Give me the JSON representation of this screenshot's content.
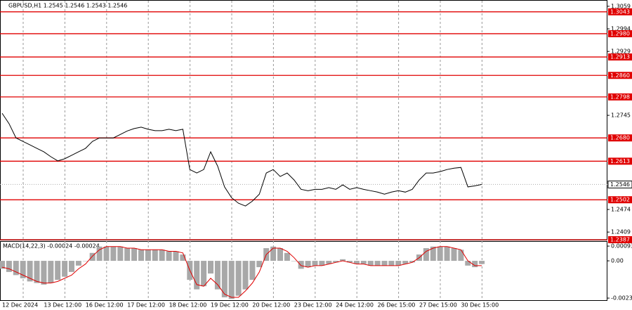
{
  "chart_data": [
    {
      "type": "line",
      "title": "GBPUSD,H1  1.2545 1.2546 1.2543 1.2546",
      "color": "#000000",
      "level_color": "#e00000",
      "categories": [
        "12 Dec 2024",
        null,
        null,
        null,
        null,
        null,
        "13 Dec 12:00",
        null,
        null,
        null,
        null,
        null,
        "16 Dec 12:00",
        null,
        null,
        null,
        null,
        null,
        "17 Dec 12:00",
        null,
        null,
        null,
        null,
        null,
        "18 Dec 12:00",
        null,
        null,
        null,
        null,
        null,
        "19 Dec 12:00",
        null,
        null,
        null,
        null,
        null,
        "20 Dec 12:00",
        null,
        null,
        null,
        null,
        null,
        "23 Dec 12:00",
        null,
        null,
        null,
        null,
        null,
        "24 Dec 12:00",
        null,
        null,
        null,
        null,
        null,
        "26 Dec 15:00",
        null,
        null,
        null,
        null,
        null,
        "27 Dec 15:00",
        null,
        null,
        null,
        null,
        null,
        "30 Dec 15:00",
        null,
        null,
        null
      ],
      "values": [
        1.2751,
        1.2721,
        1.268,
        1.267,
        1.266,
        1.265,
        1.264,
        1.2626,
        1.2614,
        1.262,
        1.263,
        1.264,
        1.265,
        1.267,
        1.268,
        1.268,
        1.268,
        1.269,
        1.27,
        1.2707,
        1.2711,
        1.2705,
        1.2701,
        1.2701,
        1.2705,
        1.2701,
        1.2705,
        1.2589,
        1.2579,
        1.2589,
        1.264,
        1.2599,
        1.2539,
        1.2508,
        1.2492,
        1.2484,
        1.2498,
        1.2518,
        1.2579,
        1.2589,
        1.2569,
        1.2579,
        1.2559,
        1.2532,
        1.2528,
        1.2532,
        1.2532,
        1.2537,
        1.2532,
        1.2545,
        1.2532,
        1.2537,
        1.2532,
        1.2528,
        1.2524,
        1.2518,
        1.2524,
        1.2528,
        1.2524,
        1.2532,
        1.2559,
        1.2579,
        1.2579,
        1.2583,
        1.2589,
        1.2593,
        1.2595,
        1.2539,
        1.2542,
        1.2546
      ],
      "ylim": [
        1.2387,
        1.3075
      ],
      "yticks": [
        1.3059,
        1.2994,
        1.2929,
        1.2745,
        1.2474,
        1.2409
      ],
      "levels": [
        1.3043,
        {
          "value": 1.298,
          "label": "1.2980"
        },
        1.2913,
        {
          "value": 1.286,
          "label": "1.2860"
        },
        1.2798,
        {
          "value": 1.268,
          "label": "1.2680"
        },
        1.2613,
        1.2502,
        1.2387
      ],
      "last": 1.2546,
      "grid": true
    },
    {
      "type": "macd",
      "title": "MACD(14,22,3) -0.00024 -0.00024",
      "series": [
        {
          "color": "#a8a8a8",
          "values": [
            -0.0005,
            -0.0007,
            -0.0009,
            -0.0011,
            -0.0013,
            -0.0014,
            -0.0015,
            -0.0014,
            -0.0012,
            -0.001,
            -0.0007,
            -0.0003,
            0,
            0.0005,
            0.0009,
            0.0009,
            0.0009,
            0.0009,
            0.0008,
            0.0008,
            0.0007,
            0.0007,
            0.0007,
            0.0007,
            0.0006,
            0.0006,
            0.0004,
            -0.0012,
            -0.0018,
            -0.0016,
            -0.0008,
            -0.0018,
            -0.0023,
            -0.0024,
            -0.0022,
            -0.0018,
            -0.0012,
            -0.0004,
            0.0008,
            0.0009,
            0.0008,
            0.0005,
            0,
            -0.0005,
            -0.0004,
            -0.0003,
            -0.0003,
            -0.0002,
            -0.0001,
            0.0001,
            -0.0001,
            -0.0002,
            -0.0002,
            -0.0003,
            -0.0003,
            -0.0003,
            -0.0003,
            -0.0003,
            -0.0002,
            -0.0001,
            0.0004,
            0.0008,
            0.0009,
            0.0009,
            0.0009,
            0.0008,
            0.0007,
            -0.0003,
            -0.0004,
            -0.0002
          ]
        },
        {
          "color": "#e00000",
          "values": [
            -0.0004,
            -0.0005,
            -0.0007,
            -0.0009,
            -0.0011,
            -0.0013,
            -0.0014,
            -0.0014,
            -0.0013,
            -0.0011,
            -0.0009,
            -0.0005,
            -0.0002,
            0.0003,
            0.0007,
            0.0009,
            0.0009,
            0.0009,
            0.0008,
            0.0008,
            0.0007,
            0.0007,
            0.0007,
            0.0007,
            0.0006,
            0.0006,
            0.0005,
            -0.0006,
            -0.0015,
            -0.0016,
            -0.0011,
            -0.0015,
            -0.0021,
            -0.0023,
            -0.0023,
            -0.0019,
            -0.0014,
            -0.0007,
            0.0004,
            0.0008,
            0.0008,
            0.0006,
            0.0002,
            -0.0003,
            -0.0004,
            -0.0003,
            -0.0003,
            -0.0002,
            -0.0001,
            0,
            -0.0001,
            -0.0002,
            -0.0002,
            -0.0003,
            -0.0003,
            -0.0003,
            -0.0003,
            -0.0003,
            -0.0002,
            -0.0001,
            0.0002,
            0.0006,
            0.0008,
            0.0009,
            0.0009,
            0.0008,
            0.0007,
            0,
            -0.0003,
            -0.0003
          ]
        }
      ],
      "ylim": [
        -0.00248,
        0.0012
      ],
      "yticks": [
        0.00093,
        {
          "value": 0,
          "label": "0.00"
        },
        -0.00235
      ]
    }
  ]
}
